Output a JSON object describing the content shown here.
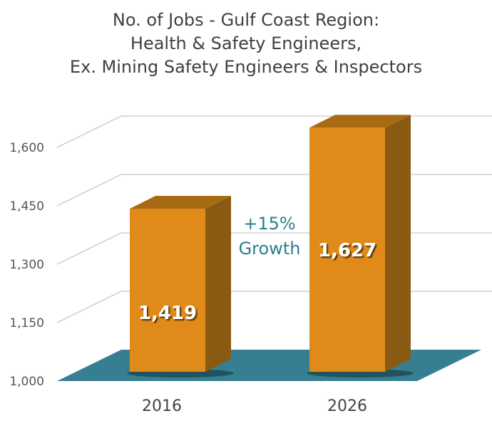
{
  "chart_data": {
    "type": "bar",
    "title": [
      "No. of Jobs - Gulf Coast Region:",
      "Health & Safety Engineers,",
      "Ex. Mining Safety Engineers & Inspectors"
    ],
    "categories": [
      "2016",
      "2026"
    ],
    "values": [
      1419,
      1627
    ],
    "data_labels": [
      "1,419",
      "1,627"
    ],
    "ylim": [
      1000,
      1650
    ],
    "yticks": [
      1000,
      1150,
      1300,
      1450,
      1600
    ],
    "ytick_labels": [
      "1,000",
      "1,150",
      "1,300",
      "1,450",
      "1,600"
    ],
    "annotation": [
      "+15%",
      "Growth"
    ],
    "grid": true,
    "style": "3d",
    "colors": {
      "bar_front": "#E08A1A",
      "bar_side": "#8B5A12",
      "bar_top": "#A86A12",
      "floor": "#367F92",
      "annotation": "#2E7D8C"
    }
  }
}
